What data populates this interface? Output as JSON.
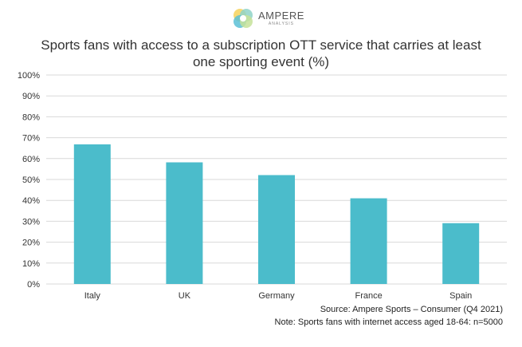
{
  "logo": {
    "name": "AMPERE",
    "subtitle": "ANALYSIS"
  },
  "chart_data": {
    "type": "bar",
    "title": "Sports fans with access to a subscription OTT service that carries at least one sporting event (%)",
    "categories": [
      "Italy",
      "UK",
      "Germany",
      "France",
      "Spain"
    ],
    "values": [
      66.8,
      58.2,
      52.1,
      41.0,
      29.1
    ],
    "value_format": "percent",
    "ylim": [
      0,
      100
    ],
    "yticks": [
      0,
      10,
      20,
      30,
      40,
      50,
      60,
      70,
      80,
      90,
      100
    ],
    "ytick_labels": [
      "0%",
      "10%",
      "20%",
      "30%",
      "40%",
      "50%",
      "60%",
      "70%",
      "80%",
      "90%",
      "100%"
    ],
    "xlabel": "",
    "ylabel": "",
    "grid": true,
    "bar_color": "#4BBCCB",
    "grid_color": "#D9D9D9"
  },
  "source": "Source: Ampere Sports – Consumer (Q4 2021)",
  "note": "Note: Sports fans with internet access aged 18-64: n=5000"
}
